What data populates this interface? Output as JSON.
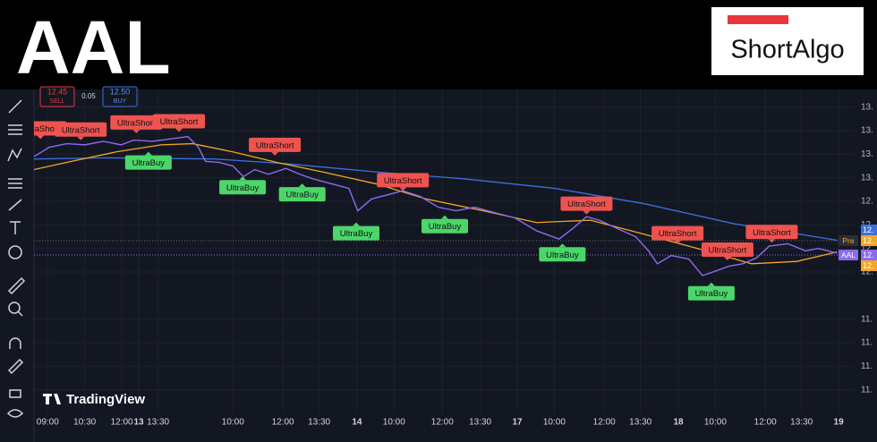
{
  "header": {
    "title": "AAL",
    "logo": "ShortAlgo"
  },
  "order_panel": {
    "sell_price": "12.45",
    "sell_label": "SELL",
    "spread": "0.05",
    "buy_price": "12.50",
    "buy_label": "BUY"
  },
  "watermark": "TradingView",
  "price_tags": [
    {
      "label": "Pre",
      "value": "12.",
      "color": "#f5a623"
    },
    {
      "label": "AAL",
      "value": "12.",
      "color": "#8b6cf0"
    }
  ],
  "side_tags": [
    {
      "value": "12.",
      "color": "#3d6fe0"
    },
    {
      "value": "12.",
      "color": "#f5a623"
    }
  ],
  "chart_data": {
    "type": "line",
    "xlim": [
      0,
      100
    ],
    "ylim": [
      11.0,
      13.75
    ],
    "xticks": [
      {
        "value": 1.7,
        "label": "09:00"
      },
      {
        "value": 6.3,
        "label": "10:30"
      },
      {
        "value": 10.9,
        "label": "12:00"
      },
      {
        "value": 15.4,
        "label": "13:30"
      },
      13.0,
      {
        "value": 24.7,
        "label": "10:00"
      },
      {
        "value": 30.9,
        "label": "12:00"
      },
      {
        "value": 35.4,
        "label": "13:30"
      },
      {
        "value": 40.1,
        "label": "14"
      },
      {
        "value": 44.7,
        "label": "10:00"
      },
      {
        "value": 50.7,
        "label": "12:00"
      },
      {
        "value": 55.4,
        "label": "13:30"
      },
      {
        "value": 60.0,
        "label": "17"
      },
      {
        "value": 64.6,
        "label": "10:00"
      },
      {
        "value": 70.8,
        "label": "12:00"
      },
      {
        "value": 75.3,
        "label": "13:30"
      },
      {
        "value": 80.0,
        "label": "18"
      },
      {
        "value": 84.6,
        "label": "10:00"
      },
      {
        "value": 90.8,
        "label": "12:00"
      },
      {
        "value": 95.3,
        "label": "13:30"
      },
      {
        "value": 99.9,
        "label": "19"
      }
    ],
    "yticks": [
      {
        "value": 13.6,
        "label": "13."
      },
      {
        "value": 13.4,
        "label": "13."
      },
      {
        "value": 13.2,
        "label": "13."
      },
      {
        "value": 13.0,
        "label": "13."
      },
      {
        "value": 12.8,
        "label": "12."
      },
      {
        "value": 12.6,
        "label": "12."
      },
      {
        "value": 12.4,
        "label": "12."
      },
      {
        "value": 12.2,
        "label": "12."
      },
      {
        "value": 11.8,
        "label": "11."
      },
      {
        "value": 11.6,
        "label": "11."
      },
      {
        "value": 11.4,
        "label": "11."
      },
      {
        "value": 11.2,
        "label": "11."
      }
    ],
    "grid": true,
    "series": [
      {
        "name": "AAL",
        "color": "#8b6cf0",
        "x": [
          0,
          1.9,
          4.1,
          6.3,
          8.6,
          10.8,
          12.4,
          14.7,
          16.9,
          19.1,
          20.4,
          21.3,
          23.0,
          24.7,
          26.0,
          27.4,
          29.1,
          31.3,
          33.0,
          34.7,
          36.9,
          39.1,
          40.2,
          41.9,
          43.6,
          45.8,
          48.0,
          50.2,
          52.4,
          54.7,
          57.4,
          59.7,
          62.4,
          65.2,
          66.9,
          68.6,
          70.2,
          72.4,
          74.7,
          76.3,
          77.4,
          79.1,
          81.3,
          83.0,
          84.7,
          86.3,
          88.0,
          89.7,
          91.3,
          93.6,
          95.8,
          97.4,
          99.7
        ],
        "values": [
          13.18,
          13.26,
          13.29,
          13.28,
          13.31,
          13.28,
          13.32,
          13.31,
          13.33,
          13.35,
          13.26,
          13.14,
          13.13,
          13.1,
          13.01,
          13.07,
          13.03,
          13.08,
          13.03,
          12.99,
          12.95,
          12.91,
          12.72,
          12.82,
          12.85,
          12.89,
          12.84,
          12.75,
          12.72,
          12.75,
          12.7,
          12.66,
          12.55,
          12.48,
          12.57,
          12.67,
          12.64,
          12.57,
          12.5,
          12.38,
          12.27,
          12.34,
          12.31,
          12.17,
          12.21,
          12.25,
          12.27,
          12.32,
          12.42,
          12.44,
          12.38,
          12.4,
          12.36
        ]
      },
      {
        "color": "#f5a623",
        "x": [
          0,
          4.7,
          10.2,
          15.8,
          19.7,
          24.7,
          30.2,
          35.8,
          42.4,
          48.7,
          55.8,
          62.4,
          69.1,
          75.8,
          82.4,
          89.1,
          94.7,
          99.7
        ],
        "values": [
          13.07,
          13.14,
          13.22,
          13.28,
          13.29,
          13.22,
          13.13,
          13.05,
          12.95,
          12.82,
          12.72,
          12.62,
          12.64,
          12.52,
          12.4,
          12.27,
          12.29,
          12.37
        ]
      },
      {
        "color": "#3d6fe0",
        "x": [
          0,
          9.1,
          22.4,
          31.3,
          42.4,
          53.6,
          64.7,
          75.8,
          86.9,
          99.7
        ],
        "values": [
          13.16,
          13.17,
          13.16,
          13.12,
          13.05,
          12.99,
          12.91,
          12.78,
          12.61,
          12.47
        ]
      }
    ],
    "annotations": [
      {
        "text": "UltraShort",
        "kind": "short",
        "x": 0.8,
        "y": 13.42
      },
      {
        "text": "UltraShort",
        "kind": "short",
        "x": 5.8,
        "y": 13.41
      },
      {
        "text": "UltraShort",
        "kind": "short",
        "x": 12.7,
        "y": 13.47
      },
      {
        "text": "UltraShort",
        "kind": "short",
        "x": 18.0,
        "y": 13.48
      },
      {
        "text": "UltraShort",
        "kind": "short",
        "x": 29.9,
        "y": 13.28
      },
      {
        "text": "UltraShort",
        "kind": "short",
        "x": 45.8,
        "y": 12.98
      },
      {
        "text": "UltraShort",
        "kind": "short",
        "x": 68.6,
        "y": 12.78
      },
      {
        "text": "UltraShort",
        "kind": "short",
        "x": 79.9,
        "y": 12.53
      },
      {
        "text": "UltraShort",
        "kind": "short",
        "x": 86.1,
        "y": 12.39
      },
      {
        "text": "UltraShort",
        "kind": "short",
        "x": 91.6,
        "y": 12.54
      },
      {
        "text": "UltraBuy",
        "kind": "buy",
        "x": 14.2,
        "y": 13.13
      },
      {
        "text": "UltraBuy",
        "kind": "buy",
        "x": 25.9,
        "y": 12.92
      },
      {
        "text": "UltraBuy",
        "kind": "buy",
        "x": 33.3,
        "y": 12.86
      },
      {
        "text": "UltraBuy",
        "kind": "buy",
        "x": 40.0,
        "y": 12.53
      },
      {
        "text": "UltraBuy",
        "kind": "buy",
        "x": 51.0,
        "y": 12.59
      },
      {
        "text": "UltraBuy",
        "kind": "buy",
        "x": 65.6,
        "y": 12.35
      },
      {
        "text": "UltraBuy",
        "kind": "buy",
        "x": 84.1,
        "y": 12.02
      }
    ]
  }
}
